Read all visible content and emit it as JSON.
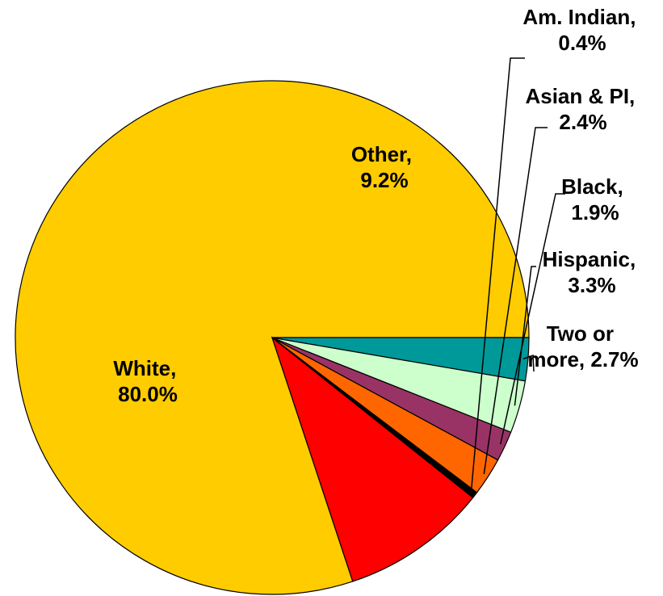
{
  "chart_data": {
    "type": "pie",
    "title": "",
    "slices": [
      {
        "name": "White",
        "line1": "White,",
        "line2": "80.0%",
        "value": 80.0,
        "color": "#FFCC00",
        "label_inside": true
      },
      {
        "name": "Other",
        "line1": "Other,",
        "line2": "9.2%",
        "value": 9.2,
        "color": "#FF0000",
        "label_inside": true
      },
      {
        "name": "Am. Indian",
        "line1": "Am. Indian,",
        "line2": "0.4%",
        "value": 0.4,
        "color": "#000000",
        "label_inside": false
      },
      {
        "name": "Asian & PI",
        "line1": "Asian & PI,",
        "line2": "2.4%",
        "value": 2.4,
        "color": "#FF6600",
        "label_inside": false
      },
      {
        "name": "Black",
        "line1": "Black,",
        "line2": "1.9%",
        "value": 1.9,
        "color": "#993366",
        "label_inside": false
      },
      {
        "name": "Hispanic",
        "line1": "Hispanic,",
        "line2": "3.3%",
        "value": 3.3,
        "color": "#CCFFCC",
        "label_inside": false
      },
      {
        "name": "Two or more",
        "line1": "Two or",
        "line2": "more, 2.7%",
        "value": 2.7,
        "color": "#009999",
        "label_inside": false
      }
    ],
    "start_angle_deg": 0,
    "direction": "counterclockwise",
    "legend": "none"
  }
}
